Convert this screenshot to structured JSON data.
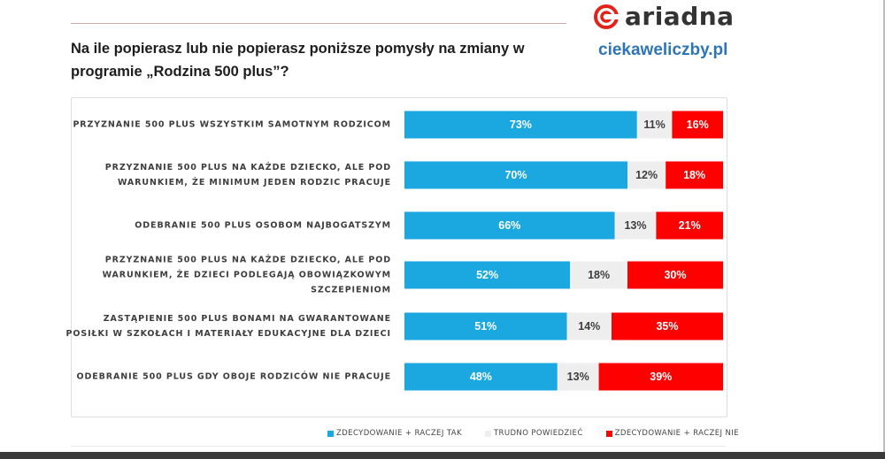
{
  "header": {
    "title": "Na ile popierasz lub nie popierasz poniższe pomysły na zmiany w programie „Rodzina 500 plus”?",
    "brand": "ariadna",
    "site": "ciekaweliczby.pl"
  },
  "colors": {
    "tak": "#1ba8e0",
    "trudno": "#eeeeee",
    "nie": "#ff0000",
    "brand": "#e2231a",
    "site": "#2e75b6"
  },
  "chart_data": {
    "type": "bar",
    "orientation": "horizontal",
    "stacked": true,
    "percent": true,
    "title": "Na ile popierasz lub nie popierasz poniższe pomysły na zmiany w programie „Rodzina 500 plus”?",
    "categories": [
      [
        "PRZYZNANIE 500 PLUS WSZYSTKIM SAMOTNYM RODZICOM"
      ],
      [
        "PRZYZNANIE 500 PLUS NA KAŻDE DZIECKO, ALE POD",
        "WARUNKIEM, ŻE MINIMUM JEDEN RODZIC PRACUJE"
      ],
      [
        "ODEBRANIE 500 PLUS OSOBOM NAJBOGATSZYM"
      ],
      [
        "PRZYZNANIE 500 PLUS NA KAŻDE DZIECKO, ALE POD",
        "WARUNKIEM, ŻE DZIECI PODLEGAJĄ OBOWIĄZKOWYM",
        "SZCZEPIENIOM"
      ],
      [
        "ZASTĄPIENIE 500 PLUS BONAMI NA GWARANTOWANE",
        "POSIŁKI W SZKOŁACH I MATERIAŁY EDUKACYJNE DLA DZIECI"
      ],
      [
        "ODEBRANIE 500 PLUS GDY OBOJE RODZICÓW NIE PRACUJE"
      ]
    ],
    "series": [
      {
        "name": "ZDECYDOWANIE + RACZEJ TAK",
        "values": [
          73,
          70,
          66,
          52,
          51,
          48
        ],
        "labels": [
          "73%",
          "70%",
          "66%",
          "52%",
          "51%",
          "48%"
        ]
      },
      {
        "name": "TRUDNO POWIEDZIEĆ",
        "values": [
          11,
          12,
          13,
          18,
          14,
          13
        ],
        "labels": [
          "11%",
          "12%",
          "13%",
          "18%",
          "14%",
          "13%"
        ]
      },
      {
        "name": "ZDECYDOWANIE + RACZEJ NIE",
        "values": [
          16,
          18,
          21,
          30,
          35,
          39
        ],
        "labels": [
          "16%",
          "18%",
          "21%",
          "30%",
          "35%",
          "39%"
        ]
      }
    ],
    "xlim": [
      0,
      100
    ],
    "legend": "bottom"
  }
}
